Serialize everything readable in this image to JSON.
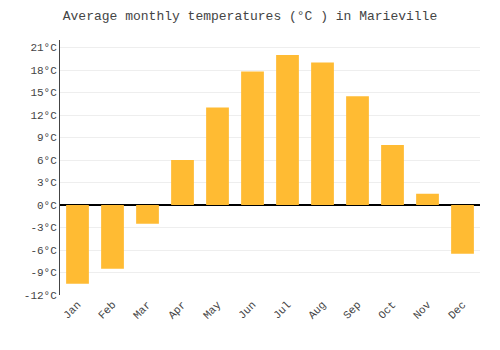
{
  "chart_data": {
    "type": "bar",
    "title": "Average monthly temperatures (°C ) in Marieville",
    "categories": [
      "Jan",
      "Feb",
      "Mar",
      "Apr",
      "May",
      "Jun",
      "Jul",
      "Aug",
      "Sep",
      "Oct",
      "Nov",
      "Dec"
    ],
    "values": [
      -10.5,
      -8.5,
      -2.5,
      6.0,
      13.0,
      17.8,
      20.0,
      19.0,
      14.5,
      8.0,
      1.5,
      -6.5
    ],
    "color": "#FFBB33",
    "ylim": [
      -12,
      22
    ],
    "yticks": [
      {
        "value": -12,
        "label": "-12°C"
      },
      {
        "value": -9,
        "label": "-9°C"
      },
      {
        "value": -6,
        "label": "-6°C"
      },
      {
        "value": -3,
        "label": "-3°C"
      },
      {
        "value": 0,
        "label": "0°C"
      },
      {
        "value": 3,
        "label": "3°C"
      },
      {
        "value": 6,
        "label": "6°C"
      },
      {
        "value": 9,
        "label": "9°C"
      },
      {
        "value": 12,
        "label": "12°C"
      },
      {
        "value": 15,
        "label": "15°C"
      },
      {
        "value": 18,
        "label": "18°C"
      },
      {
        "value": 21,
        "label": "21°C"
      }
    ],
    "grid": true
  }
}
